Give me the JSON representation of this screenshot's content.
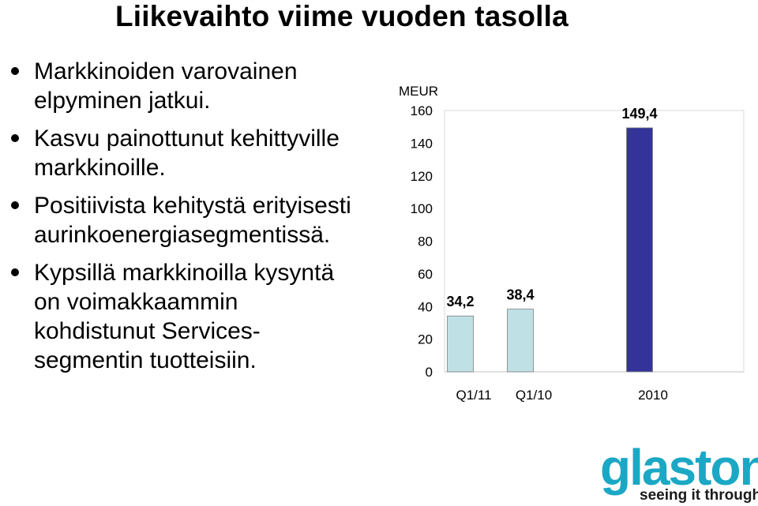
{
  "slide": {
    "title": "Liikevaihto viime vuoden tasolla",
    "bullets": [
      {
        "lines": [
          "Markkinoiden varovainen",
          "elpyminen jatkui."
        ]
      },
      {
        "lines": [
          "Kasvu painottunut kehittyville",
          "markkinoille."
        ]
      },
      {
        "lines": [
          "Positiivista kehitystä erityisesti",
          "aurinkoenergiasegmentissä."
        ]
      },
      {
        "lines": [
          "Kypsillä markkinoilla kysyntä",
          "on voimakkaammin",
          "kohdistunut Services-",
          "segmentin tuotteisiin."
        ]
      }
    ]
  },
  "chart_data": {
    "type": "bar",
    "unit": "MEUR",
    "categories": [
      "Q1/11",
      "Q1/10",
      "2010"
    ],
    "values": [
      34.2,
      38.4,
      149.4
    ],
    "data_labels": [
      "34,2",
      "38,4",
      "149,4"
    ],
    "ylim": [
      0,
      160
    ],
    "yticks": [
      0,
      20,
      40,
      60,
      80,
      100,
      120,
      140,
      160
    ],
    "bar_colors": [
      "#bfe0e4",
      "#bfe0e4",
      "#333399"
    ],
    "grid": false
  },
  "logo": {
    "word": "glaston",
    "tagline": "seeing it through",
    "color": "#1aa8c4"
  }
}
